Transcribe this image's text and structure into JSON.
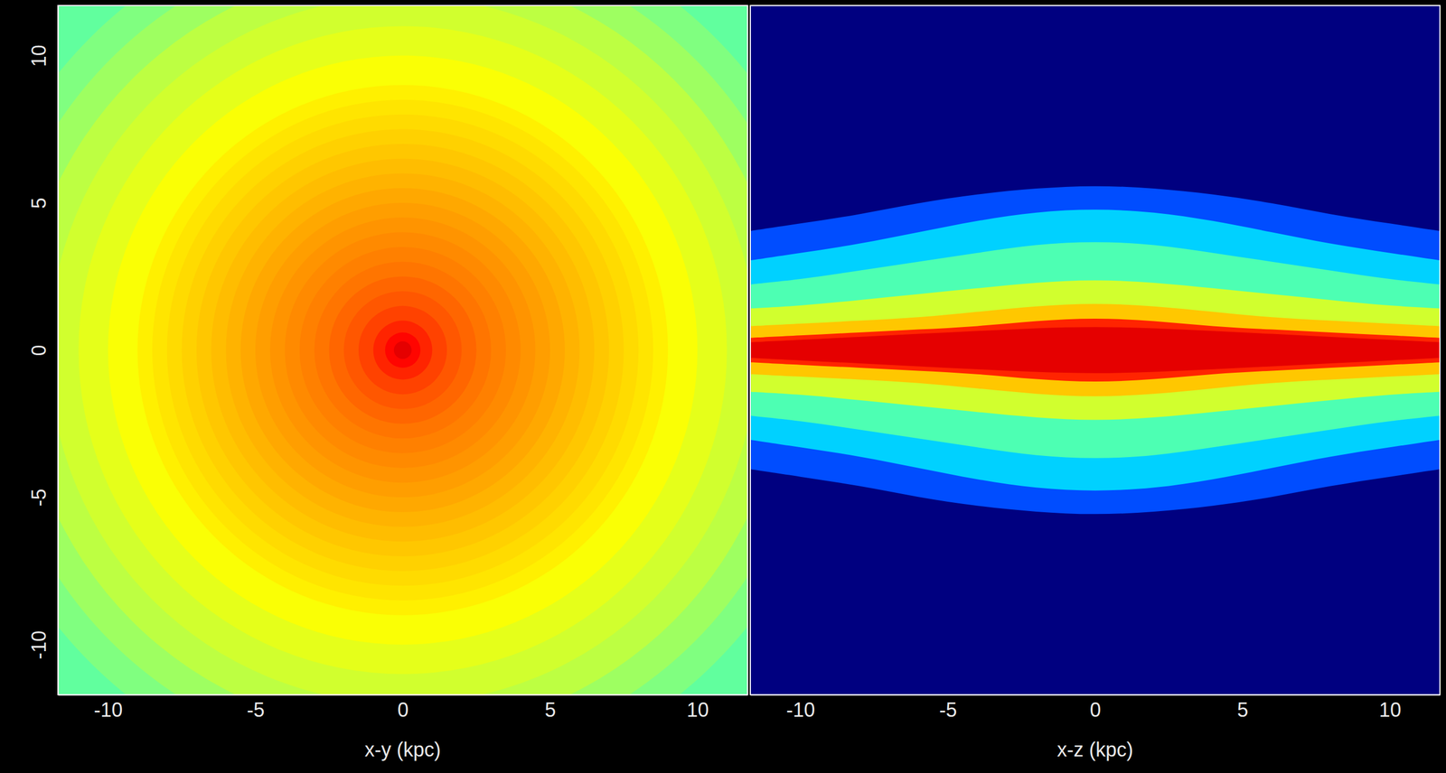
{
  "chart_data": [
    {
      "type": "radial",
      "x_label": "x-y (kpc)",
      "xlim": [
        -11.7,
        11.7
      ],
      "ylim": [
        -11.7,
        11.7
      ],
      "xticks": [
        -10,
        -5,
        0,
        5,
        10
      ],
      "yticks": [
        -10,
        -5,
        0,
        5,
        10
      ],
      "level_range": [
        0,
        1
      ],
      "center": [
        0,
        0
      ],
      "r": [
        0.3,
        0.6,
        1,
        1.5,
        2,
        2.5,
        3,
        3.5,
        4,
        4.5,
        5,
        5.5,
        6,
        6.5,
        7,
        7.5,
        8,
        8.5,
        9,
        10,
        11,
        12,
        13,
        14,
        15,
        17
      ],
      "level": [
        0.9,
        0.87,
        0.84,
        0.81,
        0.79,
        0.775,
        0.76,
        0.75,
        0.74,
        0.73,
        0.72,
        0.71,
        0.7,
        0.69,
        0.68,
        0.67,
        0.66,
        0.65,
        0.64,
        0.62,
        0.6,
        0.58,
        0.56,
        0.53,
        0.5,
        0.47
      ]
    },
    {
      "type": "contour",
      "x_label": "x-z (kpc)",
      "xlim": [
        -11.7,
        11.7
      ],
      "ylim": [
        -11.7,
        11.7
      ],
      "xticks": [
        -10,
        -5,
        0,
        5,
        10
      ],
      "tick_labels": "x",
      "level_range": [
        0,
        1
      ],
      "background_level": 0,
      "x": [
        -12,
        -10,
        -8,
        -6,
        -4,
        -2,
        0,
        2,
        4,
        6,
        8,
        10,
        12
      ],
      "levels": [
        {
          "level": 0.2,
          "z": [
            4.0,
            4.3,
            4.6,
            5.0,
            5.3,
            5.5,
            5.6,
            5.5,
            5.3,
            5.0,
            4.6,
            4.3,
            4.0
          ]
        },
        {
          "level": 0.33,
          "z": [
            3.0,
            3.3,
            3.6,
            4.0,
            4.4,
            4.7,
            4.8,
            4.7,
            4.4,
            4.0,
            3.6,
            3.3,
            3.0
          ]
        },
        {
          "level": 0.45,
          "z": [
            2.2,
            2.4,
            2.7,
            3.0,
            3.3,
            3.6,
            3.7,
            3.6,
            3.3,
            3.0,
            2.7,
            2.4,
            2.2
          ]
        },
        {
          "level": 0.58,
          "z": [
            1.4,
            1.5,
            1.7,
            1.9,
            2.1,
            2.3,
            2.4,
            2.3,
            2.1,
            1.9,
            1.7,
            1.5,
            1.4
          ]
        },
        {
          "level": 0.68,
          "z": [
            0.8,
            0.9,
            1.0,
            1.1,
            1.3,
            1.5,
            1.6,
            1.5,
            1.3,
            1.1,
            1.0,
            0.9,
            0.8
          ]
        },
        {
          "level": 0.84,
          "z": [
            0.4,
            0.5,
            0.6,
            0.7,
            0.8,
            1.0,
            1.1,
            1.0,
            0.8,
            0.7,
            0.6,
            0.5,
            0.4
          ]
        },
        {
          "level": 0.9,
          "z": [
            0.25,
            0.35,
            0.45,
            0.55,
            0.65,
            0.75,
            0.8,
            0.75,
            0.65,
            0.55,
            0.45,
            0.35,
            0.25
          ]
        }
      ]
    }
  ]
}
